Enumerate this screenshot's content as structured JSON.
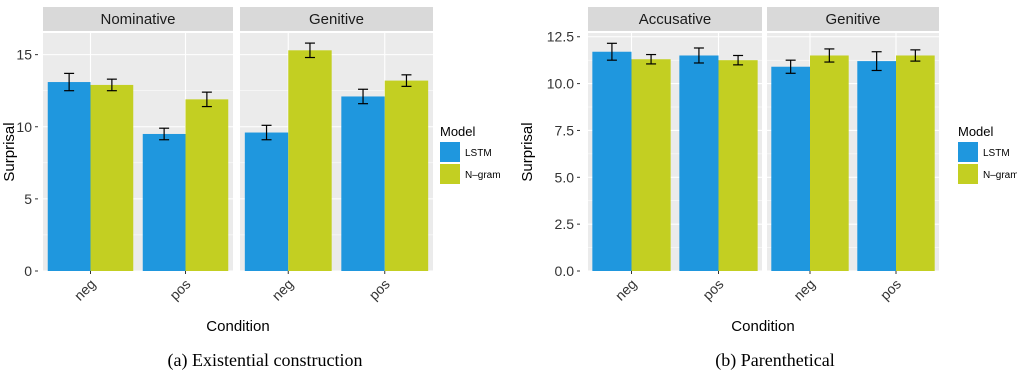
{
  "colors": {
    "LSTM": "#1f97de",
    "N-gram": "#c3cf22",
    "panel_bg": "#ebebeb",
    "strip_bg": "#d9d9d9",
    "grid": "#ffffff"
  },
  "captions": {
    "a": "(a) Existential construction",
    "b": "(b) Parenthetical"
  },
  "chart_data": [
    {
      "type": "bar",
      "title": "",
      "xlabel": "Condition",
      "ylabel": "Surprisal",
      "ylim": [
        0,
        16.5
      ],
      "yticks": [
        0,
        5,
        10,
        15
      ],
      "ytick_labels": [
        "0",
        "5",
        "10",
        "15"
      ],
      "grid": true,
      "legend": {
        "title": "Model",
        "position": "right",
        "entries": [
          "LSTM",
          "N–gram"
        ]
      },
      "categories": [
        "neg",
        "pos"
      ],
      "facets": [
        {
          "label": "Nominative",
          "series": [
            {
              "name": "LSTM",
              "values": [
                13.1,
                9.5
              ],
              "err": [
                0.6,
                0.4
              ]
            },
            {
              "name": "N-gram",
              "values": [
                12.9,
                11.9
              ],
              "err": [
                0.4,
                0.5
              ]
            }
          ]
        },
        {
          "label": "Genitive",
          "series": [
            {
              "name": "LSTM",
              "values": [
                9.6,
                12.1
              ],
              "err": [
                0.5,
                0.5
              ]
            },
            {
              "name": "N-gram",
              "values": [
                15.3,
                13.2
              ],
              "err": [
                0.5,
                0.4
              ]
            }
          ]
        }
      ]
    },
    {
      "type": "bar",
      "title": "",
      "xlabel": "Condition",
      "ylabel": "Surprisal",
      "ylim": [
        0,
        12.7
      ],
      "yticks": [
        0,
        2.5,
        5,
        7.5,
        10,
        12.5
      ],
      "ytick_labels": [
        "0.0",
        "2.5",
        "5.0",
        "7.5",
        "10.0",
        "12.5"
      ],
      "grid": true,
      "legend": {
        "title": "Model",
        "position": "right",
        "entries": [
          "LSTM",
          "N–gram"
        ]
      },
      "categories": [
        "neg",
        "pos"
      ],
      "facets": [
        {
          "label": "Accusative",
          "series": [
            {
              "name": "LSTM",
              "values": [
                11.7,
                11.5
              ],
              "err": [
                0.45,
                0.4
              ]
            },
            {
              "name": "N-gram",
              "values": [
                11.3,
                11.25
              ],
              "err": [
                0.25,
                0.25
              ]
            }
          ]
        },
        {
          "label": "Genitive",
          "series": [
            {
              "name": "LSTM",
              "values": [
                10.9,
                11.2
              ],
              "err": [
                0.35,
                0.5
              ]
            },
            {
              "name": "N-gram",
              "values": [
                11.5,
                11.5
              ],
              "err": [
                0.35,
                0.3
              ]
            }
          ]
        }
      ]
    }
  ]
}
